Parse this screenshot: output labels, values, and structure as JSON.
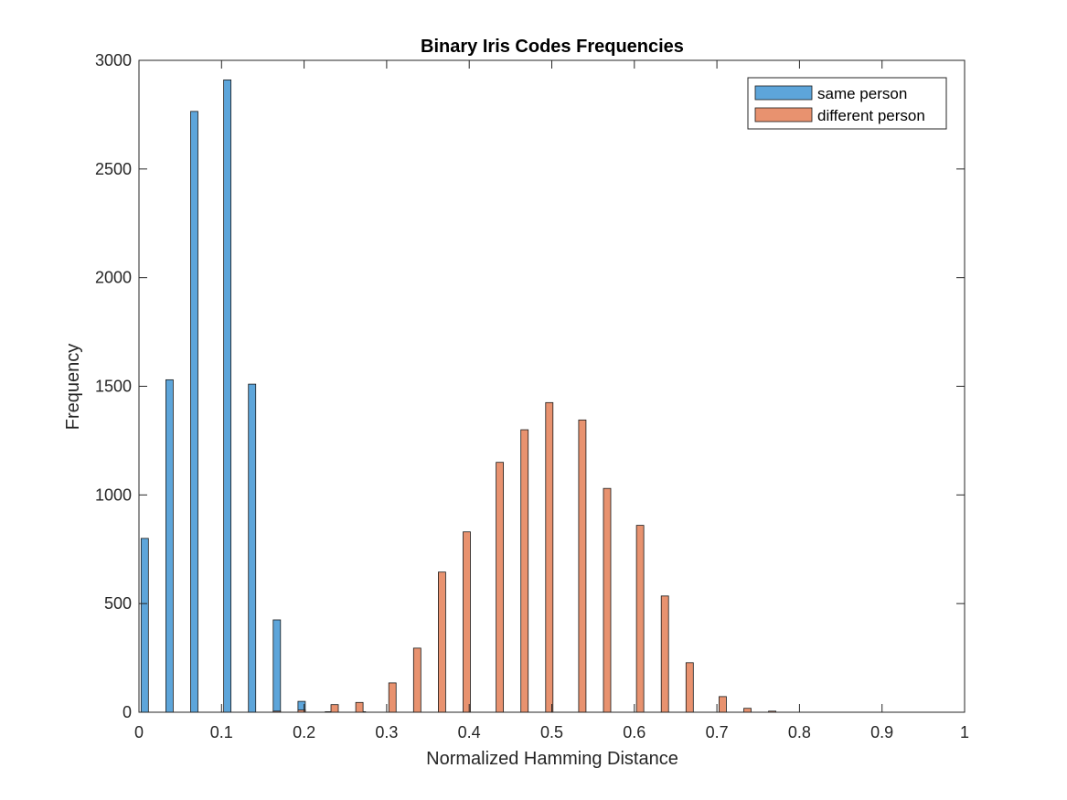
{
  "chart_data": {
    "type": "bar",
    "title": "Binary Iris Codes Frequencies",
    "xlabel": "Normalized Hamming Distance",
    "ylabel": "Frequency",
    "xlim": [
      0,
      1
    ],
    "ylim": [
      0,
      3000
    ],
    "xticks": [
      0,
      0.1,
      0.2,
      0.3,
      0.4,
      0.5,
      0.6,
      0.7,
      0.8,
      0.9,
      1
    ],
    "xtick_labels": [
      "0",
      "0.1",
      "0.2",
      "0.3",
      "0.4",
      "0.5",
      "0.6",
      "0.7",
      "0.8",
      "0.9",
      "1"
    ],
    "yticks": [
      0,
      500,
      1000,
      1500,
      2000,
      2500,
      3000
    ],
    "ytick_labels": [
      "0",
      "500",
      "1000",
      "1500",
      "2000",
      "2500",
      "3000"
    ],
    "grid": false,
    "legend_position": "top-right",
    "series": [
      {
        "name": "same person",
        "color": "#5DA5DA",
        "points": [
          {
            "x": 0.007,
            "y": 800
          },
          {
            "x": 0.037,
            "y": 1530
          },
          {
            "x": 0.067,
            "y": 2765
          },
          {
            "x": 0.107,
            "y": 2910
          },
          {
            "x": 0.137,
            "y": 1510
          },
          {
            "x": 0.167,
            "y": 425
          },
          {
            "x": 0.197,
            "y": 50
          },
          {
            "x": 0.23,
            "y": 2
          },
          {
            "x": 0.27,
            "y": 1
          }
        ]
      },
      {
        "name": "different person",
        "color": "#E8926F",
        "points": [
          {
            "x": 0.167,
            "y": 5
          },
          {
            "x": 0.197,
            "y": 10
          },
          {
            "x": 0.237,
            "y": 35
          },
          {
            "x": 0.267,
            "y": 45
          },
          {
            "x": 0.307,
            "y": 135
          },
          {
            "x": 0.337,
            "y": 295
          },
          {
            "x": 0.367,
            "y": 645
          },
          {
            "x": 0.397,
            "y": 830
          },
          {
            "x": 0.437,
            "y": 1150
          },
          {
            "x": 0.467,
            "y": 1300
          },
          {
            "x": 0.497,
            "y": 1425
          },
          {
            "x": 0.537,
            "y": 1345
          },
          {
            "x": 0.567,
            "y": 1030
          },
          {
            "x": 0.607,
            "y": 860
          },
          {
            "x": 0.637,
            "y": 535
          },
          {
            "x": 0.667,
            "y": 228
          },
          {
            "x": 0.707,
            "y": 72
          },
          {
            "x": 0.737,
            "y": 18
          },
          {
            "x": 0.767,
            "y": 5
          }
        ]
      }
    ]
  }
}
